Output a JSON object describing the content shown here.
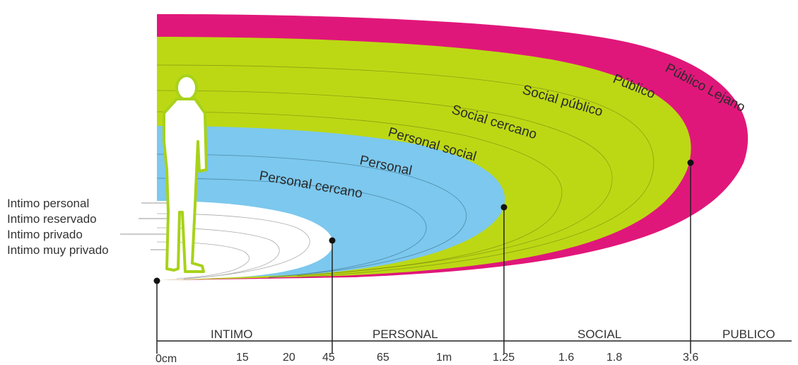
{
  "colors": {
    "publico": "#e0177a",
    "social": "#bcd814",
    "personal": "#7cc8ee",
    "intimo": "#ffffff",
    "lines": "#222222",
    "figure": "#a7d21a"
  },
  "zone_labels": {
    "publico_lejano": "Público Lejano",
    "publico": "Público",
    "social_publico": "Social público",
    "social_cercano": "Social cercano",
    "personal_social": "Personal social",
    "personal": "Personal",
    "personal_cercano": "Personal cercano"
  },
  "intimate_labels": [
    "Intimo personal",
    "Intimo reservado",
    "Intimo privado",
    "Intimo muy privado"
  ],
  "categories": [
    "INTIMO",
    "PERSONAL",
    "SOCIAL",
    "PUBLICO"
  ],
  "ticks": [
    "0cm",
    "15",
    "20",
    "45",
    "65",
    "1m",
    "1.25",
    "1.6",
    "1.8",
    "3.6"
  ],
  "figure_icon": "standing-person-icon"
}
